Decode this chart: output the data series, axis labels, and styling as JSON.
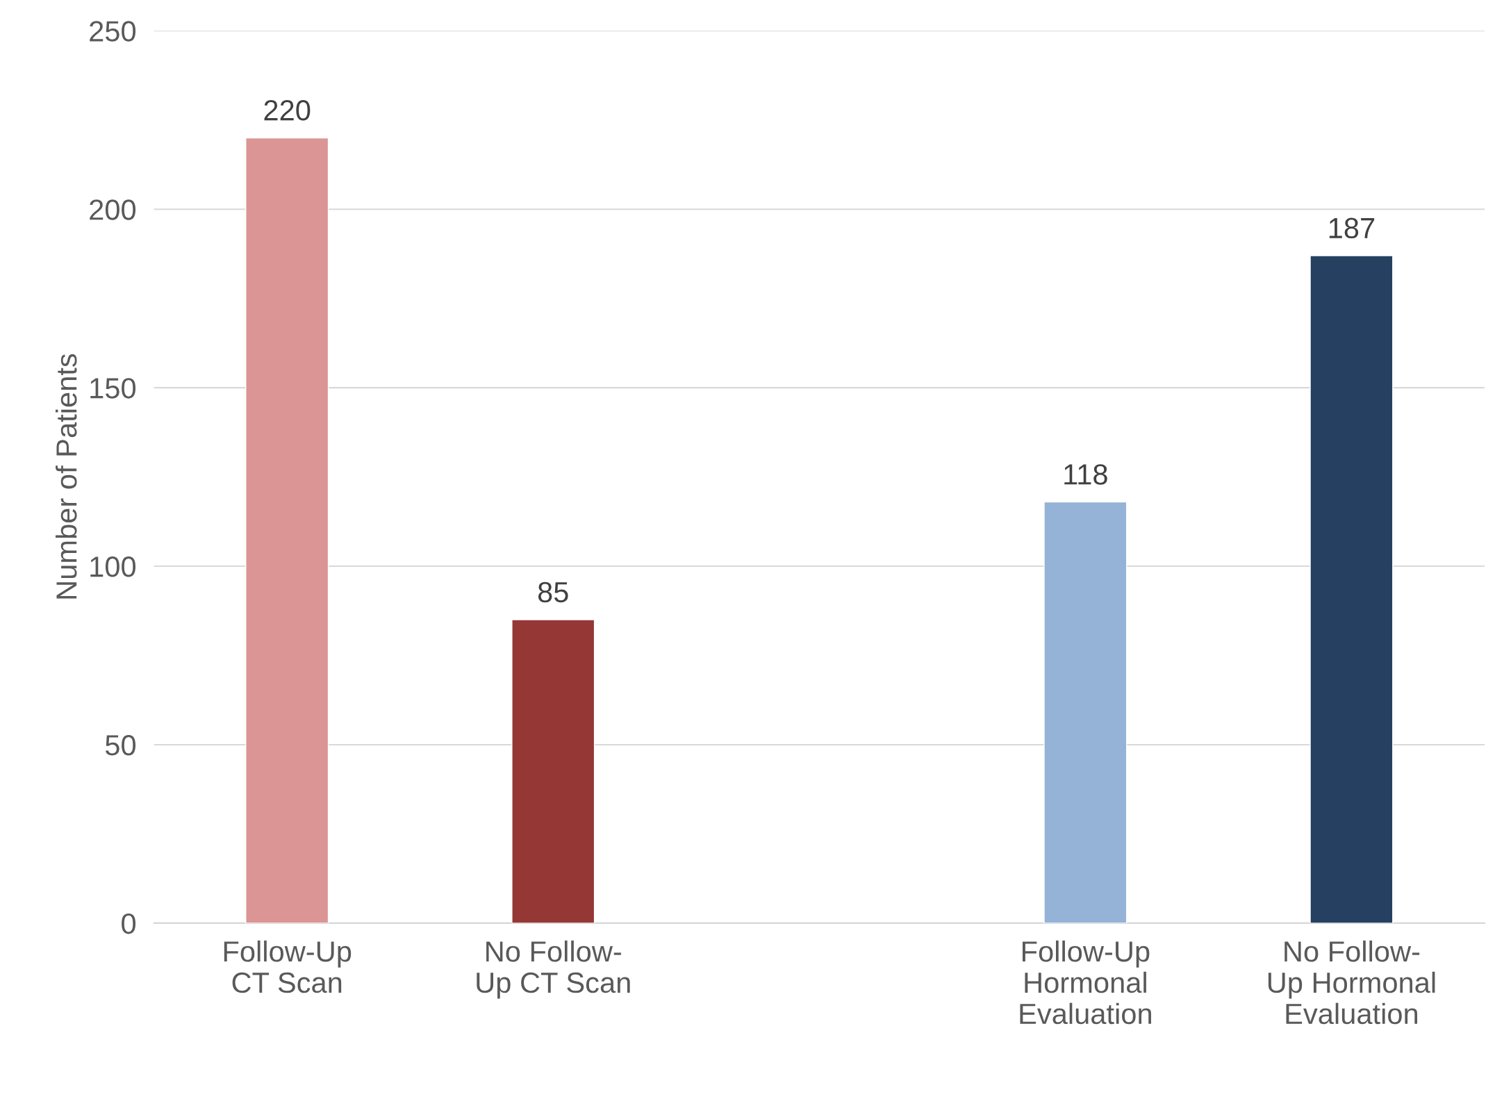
{
  "chart_data": {
    "type": "bar",
    "ylabel": "Number of Patients",
    "categories": [
      "Follow-Up\nCT Scan",
      "No Follow-\nUp CT Scan",
      null,
      "Follow-Up\nHormonal\nEvaluation",
      "No Follow-\nUp Hormonal\nEvaluation"
    ],
    "values": [
      220,
      85,
      null,
      118,
      187
    ],
    "colors": [
      "#da9594",
      "#953735",
      "#ffffff",
      "#95b3d7",
      "#254061"
    ],
    "ylim": [
      0,
      250
    ],
    "yticks": [
      0,
      50,
      100,
      150,
      200,
      250
    ],
    "grid": "y",
    "data_labels": true
  }
}
